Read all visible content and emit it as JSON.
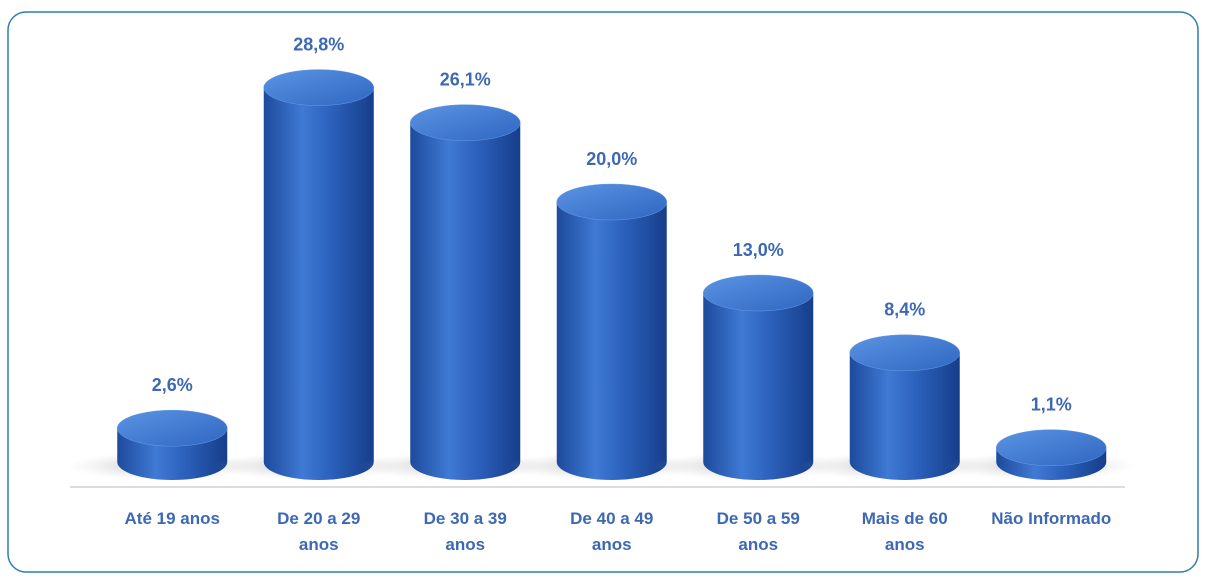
{
  "chart_data": {
    "type": "bar",
    "categories": [
      "Até 19 anos",
      "De 20 a 29 anos",
      "De 30 a 39 anos",
      "De 40 a 49 anos",
      "De 50 a 59 anos",
      "Mais de 60 anos",
      "Não Informado"
    ],
    "values": [
      2.6,
      28.8,
      26.1,
      20.0,
      13.0,
      8.4,
      1.1
    ],
    "value_labels": [
      "2,6%",
      "28,8%",
      "26,1%",
      "20,0%",
      "13,0%",
      "8,4%",
      "1,1%"
    ],
    "color": "#2a5fb8",
    "ylim": [
      0,
      30
    ]
  }
}
